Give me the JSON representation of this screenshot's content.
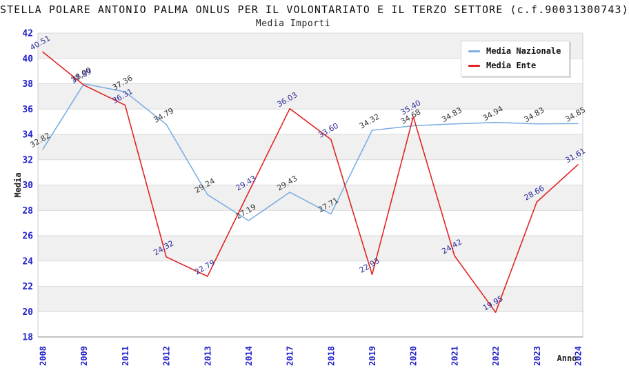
{
  "title": "STELLA POLARE ANTONIO PALMA ONLUS PER IL VOLONTARIATO E IL TERZO SETTORE (c.f.90031300743)",
  "subtitle": "Media Importi",
  "legend": {
    "items": [
      {
        "label": "Media Nazionale",
        "color": "#7caee3"
      },
      {
        "label": "Media Ente",
        "color": "#e02424"
      }
    ]
  },
  "axes": {
    "x_label": "Anno",
    "y_label": "Media",
    "y_ticks": [
      42,
      40,
      38,
      36,
      34,
      32,
      30,
      28,
      26,
      24,
      22,
      20,
      18
    ],
    "tick_color": "#2222cc",
    "axis_text_color": "#222222"
  },
  "style": {
    "band_gray": "#f0f0f0",
    "band_white": "#ffffff",
    "gridline_color": "#d9d9d9",
    "axis_line_color": "#8a8a8a",
    "plot_edge_color": "#cccccc"
  },
  "chart_data": {
    "type": "line",
    "title": "Media Importi",
    "xlabel": "Anno",
    "ylabel": "Media",
    "ylim": [
      18,
      42
    ],
    "grid": "horizontal-bands",
    "legend_position": "top-right",
    "categories": [
      "2008",
      "2009",
      "2011",
      "2012",
      "2013",
      "2014",
      "2017",
      "2018",
      "2019",
      "2020",
      "2021",
      "2022",
      "2023",
      "2024"
    ],
    "series": [
      {
        "name": "Media Nazionale",
        "color": "#7caee3",
        "label_color": "#333333",
        "values": [
          32.82,
          38.0,
          37.36,
          34.79,
          29.24,
          27.19,
          29.43,
          27.71,
          34.32,
          34.68,
          34.83,
          34.94,
          34.83,
          34.85
        ]
      },
      {
        "name": "Media Ente",
        "color": "#e02424",
        "label_color": "#2b2b99",
        "values": [
          40.51,
          37.89,
          36.31,
          24.32,
          22.79,
          29.43,
          36.03,
          33.6,
          22.93,
          35.4,
          24.42,
          19.95,
          28.66,
          31.61
        ]
      }
    ],
    "label_decimals": 2,
    "label_rotation_deg": -30
  }
}
